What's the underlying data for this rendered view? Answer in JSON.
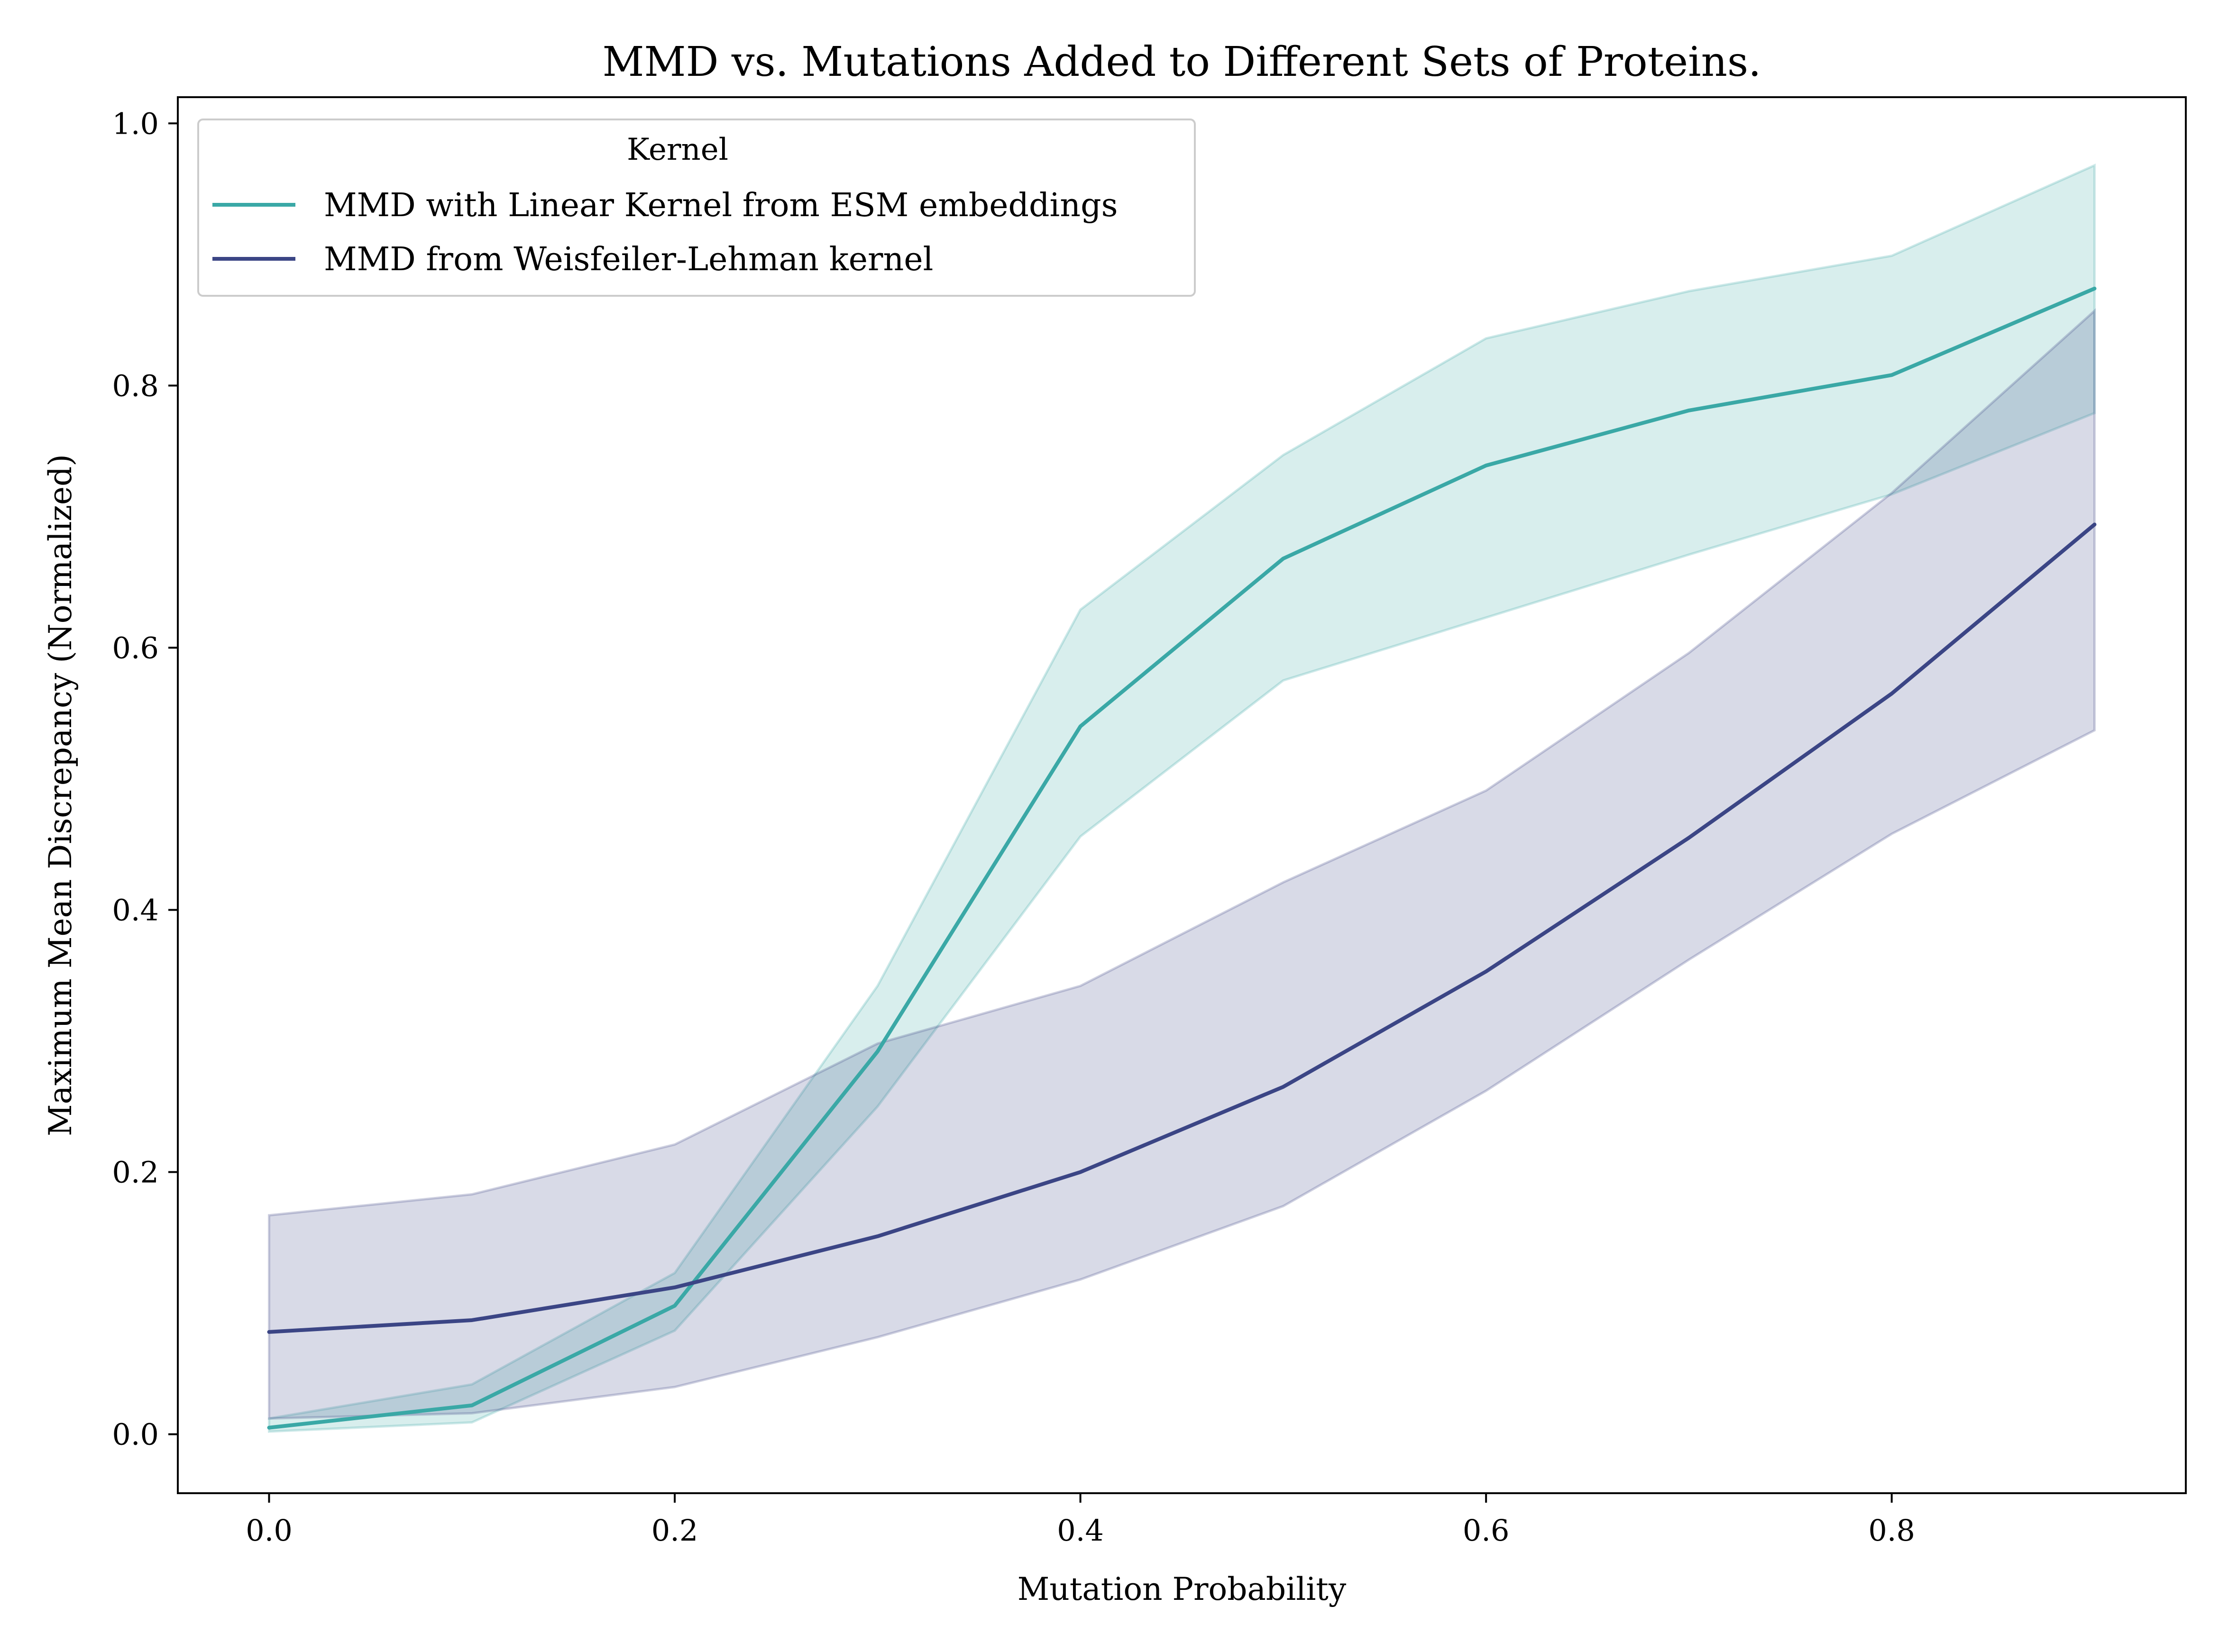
{
  "chart_data": {
    "type": "line",
    "title": "MMD vs. Mutations Added to Different Sets of Proteins.",
    "xlabel": "Mutation Probability",
    "ylabel": "Maximum Mean Discrepancy (Normalized)",
    "xlim": [
      -0.045,
      0.945
    ],
    "ylim": [
      -0.045,
      1.02
    ],
    "xticks": [
      0.0,
      0.2,
      0.4,
      0.6,
      0.8
    ],
    "xtick_labels": [
      "0.0",
      "0.2",
      "0.4",
      "0.6",
      "0.8"
    ],
    "yticks": [
      0.0,
      0.2,
      0.4,
      0.6,
      0.8,
      1.0
    ],
    "ytick_labels": [
      "0.0",
      "0.2",
      "0.4",
      "0.6",
      "0.8",
      "1.0"
    ],
    "grid": false,
    "legend": {
      "title": "Kernel",
      "placement": "upper-left"
    },
    "x": [
      0.0,
      0.1,
      0.2,
      0.3,
      0.4,
      0.5,
      0.6,
      0.7,
      0.8,
      0.9
    ],
    "series": [
      {
        "name": "MMD with Linear Kernel from ESM embeddings",
        "color": "#3aa8a6",
        "values": [
          0.005,
          0.022,
          0.098,
          0.292,
          0.54,
          0.668,
          0.739,
          0.781,
          0.808,
          0.874
        ],
        "lower": [
          0.002,
          0.009,
          0.079,
          0.25,
          0.456,
          0.575,
          0.623,
          0.671,
          0.717,
          0.779
        ],
        "upper": [
          0.012,
          0.038,
          0.123,
          0.342,
          0.629,
          0.747,
          0.836,
          0.872,
          0.899,
          0.968
        ]
      },
      {
        "name": "MMD from Weisfeiler-Lehman kernel",
        "color": "#3b4585",
        "values": [
          0.078,
          0.087,
          0.112,
          0.151,
          0.2,
          0.265,
          0.353,
          0.455,
          0.565,
          0.694
        ],
        "lower": [
          0.012,
          0.016,
          0.036,
          0.074,
          0.118,
          0.174,
          0.262,
          0.362,
          0.458,
          0.537
        ],
        "upper": [
          0.167,
          0.183,
          0.221,
          0.298,
          0.342,
          0.421,
          0.491,
          0.596,
          0.718,
          0.857
        ]
      }
    ]
  }
}
